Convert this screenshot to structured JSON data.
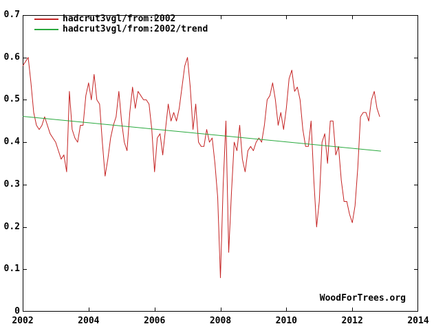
{
  "watermark": "WoodForTrees.org",
  "legend": {
    "entries": [
      {
        "label": "hadcrut3vgl/from:2002"
      },
      {
        "label": "hadcrut3vgl/from:2002/trend"
      }
    ]
  },
  "chart_data": {
    "type": "line",
    "title": "",
    "xlabel": "",
    "ylabel": "",
    "grid": false,
    "legend_position": "top-left",
    "background_color": "#ffffff",
    "axis_color": "#000000",
    "xlim": [
      2002,
      2014
    ],
    "ylim": [
      0,
      0.7
    ],
    "xticks": [
      2002,
      2004,
      2006,
      2008,
      2010,
      2012,
      2014
    ],
    "xtick_labels": [
      "2002",
      "2004",
      "2006",
      "2008",
      "2010",
      "2012",
      "2014"
    ],
    "yticks": [
      0,
      0.1,
      0.2,
      0.3,
      0.4,
      0.5,
      0.6,
      0.7
    ],
    "ytick_labels": [
      "0",
      "0.1",
      "0.2",
      "0.3",
      "0.4",
      "0.5",
      "0.6",
      "0.7"
    ],
    "series": [
      {
        "name": "hadcrut3vgl/from:2002",
        "color": "#c42222",
        "x_start": 2002.0,
        "x_step_years": 0.0833333,
        "values": [
          0.58,
          0.59,
          0.6,
          0.54,
          0.47,
          0.44,
          0.43,
          0.44,
          0.46,
          0.44,
          0.42,
          0.41,
          0.4,
          0.38,
          0.36,
          0.37,
          0.33,
          0.52,
          0.43,
          0.41,
          0.4,
          0.44,
          0.44,
          0.51,
          0.54,
          0.5,
          0.56,
          0.5,
          0.49,
          0.4,
          0.32,
          0.36,
          0.41,
          0.44,
          0.46,
          0.52,
          0.45,
          0.4,
          0.38,
          0.47,
          0.53,
          0.48,
          0.52,
          0.51,
          0.5,
          0.5,
          0.49,
          0.43,
          0.33,
          0.41,
          0.42,
          0.37,
          0.43,
          0.49,
          0.45,
          0.47,
          0.45,
          0.48,
          0.53,
          0.58,
          0.6,
          0.53,
          0.43,
          0.49,
          0.4,
          0.39,
          0.39,
          0.43,
          0.4,
          0.41,
          0.35,
          0.27,
          0.08,
          0.3,
          0.45,
          0.14,
          0.28,
          0.4,
          0.38,
          0.44,
          0.36,
          0.33,
          0.38,
          0.39,
          0.38,
          0.4,
          0.41,
          0.4,
          0.44,
          0.5,
          0.51,
          0.54,
          0.5,
          0.44,
          0.47,
          0.43,
          0.48,
          0.55,
          0.57,
          0.52,
          0.53,
          0.5,
          0.43,
          0.39,
          0.39,
          0.45,
          0.31,
          0.2,
          0.26,
          0.4,
          0.42,
          0.35,
          0.45,
          0.45,
          0.37,
          0.39,
          0.31,
          0.26,
          0.26,
          0.23,
          0.21,
          0.25,
          0.34,
          0.46,
          0.47,
          0.47,
          0.45,
          0.5,
          0.52,
          0.48,
          0.46
        ]
      },
      {
        "name": "hadcrut3vgl/from:2002/trend",
        "color": "#27a83c",
        "x": [
          2002.0,
          2012.87
        ],
        "values": [
          0.461,
          0.379
        ]
      }
    ]
  }
}
